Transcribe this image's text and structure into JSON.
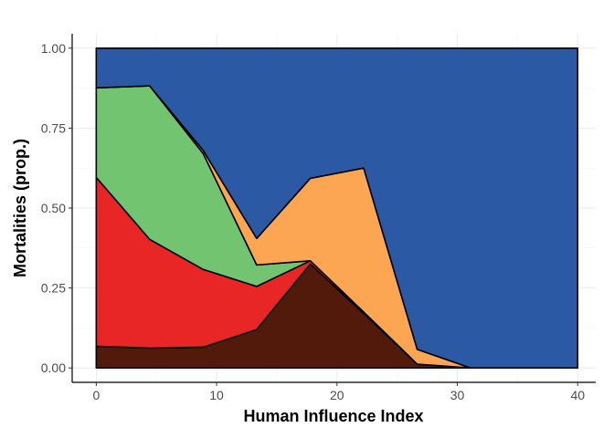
{
  "chart_data": {
    "type": "area",
    "stacked": true,
    "xlabel": "Human Influence Index",
    "ylabel": "Mortalities (prop.)",
    "xlim": [
      -2,
      41.5
    ],
    "ylim": [
      -0.045,
      1.045
    ],
    "xticks": [
      0,
      10,
      20,
      30,
      40
    ],
    "xtick_labels": [
      "0",
      "10",
      "20",
      "30",
      "40"
    ],
    "yticks": [
      0,
      0.25,
      0.5,
      0.75,
      1.0
    ],
    "ytick_labels": [
      "0.00",
      "0.25",
      "0.50",
      "0.75",
      "1.00"
    ],
    "grid": true,
    "legend": "none",
    "x": [
      0,
      4.44,
      8.89,
      13.33,
      17.78,
      22.22,
      26.67,
      31.11,
      35.56,
      40
    ],
    "series": [
      {
        "color": "#521a0a",
        "values": [
          0.068,
          0.062,
          0.065,
          0.12,
          0.325,
          0.17,
          0.012,
          0,
          0,
          0
        ]
      },
      {
        "color": "#e82626",
        "values": [
          0.528,
          0.34,
          0.243,
          0.135,
          0.01,
          0.005,
          0,
          0,
          0,
          0
        ]
      },
      {
        "color": "#73c471",
        "values": [
          0.28,
          0.48,
          0.362,
          0.067,
          0,
          0,
          0,
          0,
          0,
          0
        ]
      },
      {
        "color": "#fca653",
        "values": [
          0,
          0,
          0.01,
          0.083,
          0.258,
          0.45,
          0.046,
          0,
          0,
          0
        ]
      },
      {
        "color": "#2c59a3",
        "values": [
          0.124,
          0.118,
          0.32,
          0.595,
          0.407,
          0.375,
          0.942,
          1,
          1,
          1
        ]
      }
    ]
  }
}
